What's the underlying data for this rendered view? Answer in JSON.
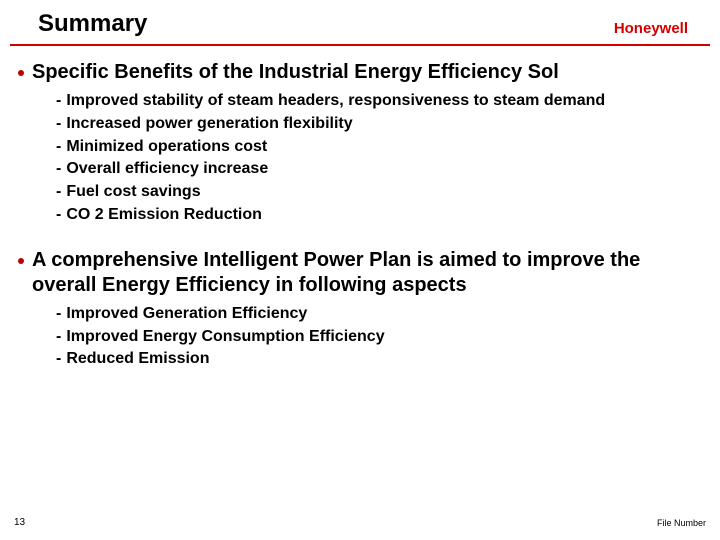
{
  "header": {
    "title": "Summary",
    "brand": "Honeywell"
  },
  "colors": {
    "brand": "#d40000",
    "bullet": "#c00000",
    "rule": "#d40000",
    "text": "#000000",
    "bg": "#ffffff"
  },
  "section1": {
    "heading": "Specific Benefits of the Industrial Energy Efficiency Sol",
    "items": [
      "Improved stability of steam headers, responsiveness to steam demand",
      "Increased power generation flexibility",
      "Minimized operations cost",
      "Overall efficiency increase",
      "Fuel cost savings",
      "CO 2 Emission Reduction"
    ]
  },
  "section2": {
    "heading": "A comprehensive Intelligent Power Plan is aimed to improve the overall Energy Efficiency in following aspects",
    "items": [
      "Improved Generation Efficiency",
      "Improved Energy Consumption Efficiency",
      "Reduced Emission"
    ]
  },
  "footer": {
    "page": "13",
    "filenum": "File Number"
  }
}
